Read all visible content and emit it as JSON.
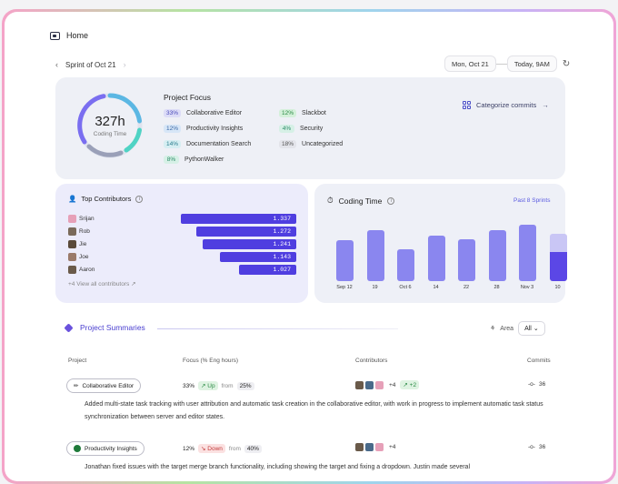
{
  "header": {
    "home_label": "Home"
  },
  "sprint": {
    "label": "Sprint of Oct 21"
  },
  "date_range": {
    "start": "Mon, Oct 21",
    "end": "Today, 9AM"
  },
  "coding_total": {
    "value": "327h",
    "label": "Coding Time"
  },
  "project_focus": {
    "title": "Project Focus",
    "left": [
      {
        "pct": "33%",
        "name": "Collaborative Editor",
        "color": "purple"
      },
      {
        "pct": "12%",
        "name": "Productivity Insights",
        "color": "blue"
      },
      {
        "pct": "14%",
        "name": "Documentation Search",
        "color": "teal"
      },
      {
        "pct": "8%",
        "name": "PythonWalker",
        "color": "mint"
      }
    ],
    "right": [
      {
        "pct": "12%",
        "name": "Slackbot",
        "color": "green"
      },
      {
        "pct": "4%",
        "name": "Security",
        "color": "mint"
      },
      {
        "pct": "18%",
        "name": "Uncategorized",
        "color": "gray"
      }
    ],
    "categorize_label": "Categorize commits"
  },
  "contributors": {
    "title": "Top Contributors",
    "rows": [
      {
        "name": "Srijan",
        "value": "1.337",
        "fraction": 1.0
      },
      {
        "name": "Rob",
        "value": "1.272",
        "fraction": 0.87
      },
      {
        "name": "Jie",
        "value": "1.241",
        "fraction": 0.81
      },
      {
        "name": "Joe",
        "value": "1.143",
        "fraction": 0.66
      },
      {
        "name": "Aaron",
        "value": "1.027",
        "fraction": 0.5
      }
    ],
    "view_all": "+4  View all contributors ↗"
  },
  "coding_time": {
    "title": "Coding Time",
    "range": "Past 8 Sprints",
    "labels": [
      "Sep 12",
      "19",
      "Oct 6",
      "14",
      "22",
      "28",
      "Nov 3",
      "10"
    ]
  },
  "chart_data": {
    "type": "bar",
    "categories": [
      "Sep 12",
      "19",
      "Oct 6",
      "14",
      "22",
      "28",
      "Nov 3",
      "10"
    ],
    "values": [
      44,
      55,
      34,
      49,
      45,
      55,
      61,
      51
    ],
    "title": "Coding Time"
  },
  "summaries": {
    "title": "Project Summaries",
    "area_label": "Area",
    "area_value": "All",
    "headers": {
      "project": "Project",
      "focus": "Focus (% Eng hours)",
      "contributors": "Contributors",
      "commits": "Commits"
    },
    "rows": [
      {
        "project": "Collaborative Editor",
        "focus": "33%",
        "trend": "↗ Up",
        "from_label": "from",
        "prev": "25%",
        "extra": "+4",
        "new": "↗ +2",
        "commits": "36",
        "description": "Added multi-state task tracking with user attribution and automatic task creation in the collaborative editor, with work in progress to implement automatic task status synchronization between server and editor states."
      },
      {
        "project": "Productivity Insights",
        "focus": "12%",
        "trend": "↘ Down",
        "from_label": "from",
        "prev": "40%",
        "extra": "+4",
        "commits": "36",
        "description": "Jonathan fixed issues with the target merge branch functionality, including showing the target and fixing a dropdown. Justin made several"
      }
    ]
  }
}
